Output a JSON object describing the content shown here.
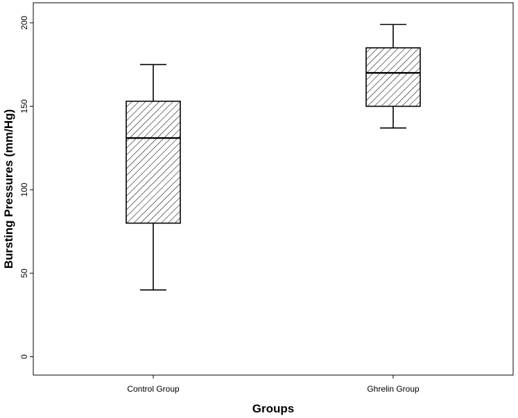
{
  "chart_data": {
    "type": "boxplot",
    "title": "",
    "xlabel": "Groups",
    "ylabel": "Bursting Pressures (mm/Hg)",
    "ylim": [
      -11,
      212
    ],
    "yticks": [
      0,
      50,
      100,
      150,
      200
    ],
    "categories": [
      "Control Group",
      "Ghrelin Group"
    ],
    "boxes": [
      {
        "category": "Control Group",
        "min": 40,
        "q1": 80,
        "median": 131,
        "q3": 153,
        "max": 175
      },
      {
        "category": "Ghrelin Group",
        "min": 137,
        "q1": 150,
        "median": 170,
        "q3": 185,
        "max": 199
      }
    ],
    "box_fill": "diagonal-hatch",
    "colors": {
      "line": "#000000",
      "background": "#ffffff"
    },
    "grid": false,
    "legend": "none"
  }
}
